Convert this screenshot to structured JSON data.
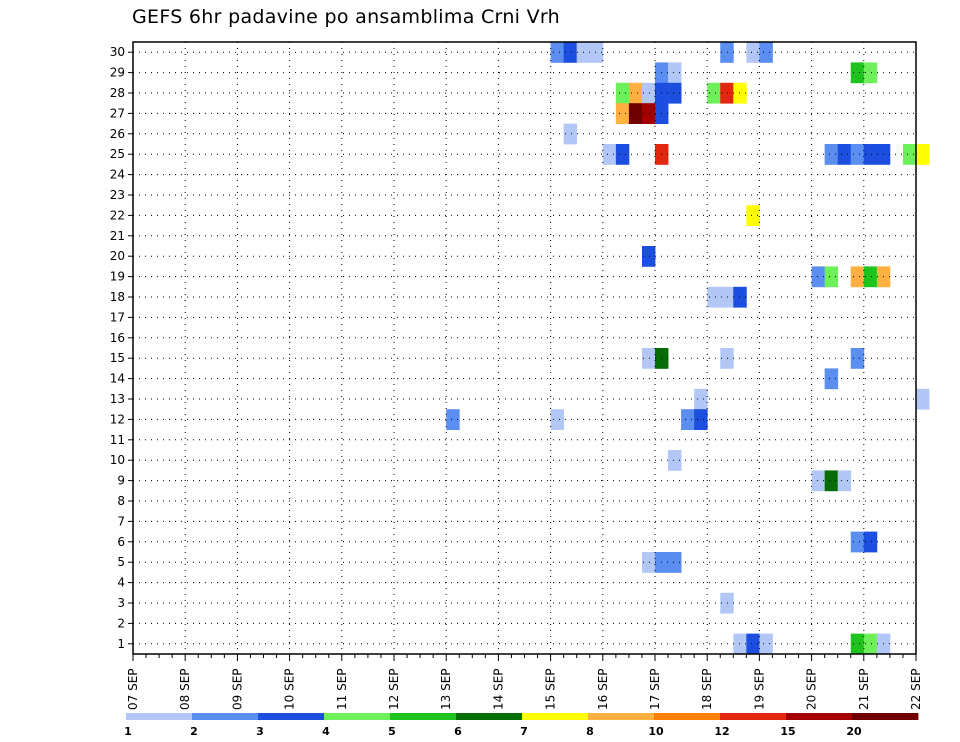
{
  "title": "GEFS 6hr padavine po ansamblima Crni Vrh",
  "chart_data": {
    "type": "heatmap",
    "title": "GEFS 6hr padavine po ansamblima Crni Vrh",
    "x_axis": {
      "ticks": [
        "07 SEP",
        "08 SEP",
        "09 SEP",
        "10 SEP",
        "11 SEP",
        "12 SEP",
        "13 SEP",
        "14 SEP",
        "15 SEP",
        "16 SEP",
        "17 SEP",
        "18 SEP",
        "19 SEP",
        "20 SEP",
        "21 SEP",
        "22 SEP"
      ],
      "step": "6h",
      "range": [
        "07 SEP 00",
        "22 SEP 00"
      ]
    },
    "y_axis": {
      "min": 1,
      "max": 30,
      "ticks": [
        1,
        2,
        3,
        4,
        5,
        6,
        7,
        8,
        9,
        10,
        11,
        12,
        13,
        14,
        15,
        16,
        17,
        18,
        19,
        20,
        21,
        22,
        23,
        24,
        25,
        26,
        27,
        28,
        29,
        30
      ]
    },
    "grid": true,
    "colorbar": {
      "labels": [
        "1",
        "2",
        "3",
        "4",
        "5",
        "6",
        "7",
        "8",
        "10",
        "12",
        "15",
        "20"
      ],
      "colors": [
        "#b3c7f7",
        "#5a8ef0",
        "#1c4fe0",
        "#6df05a",
        "#1ec31e",
        "#066d06",
        "#ffff00",
        "#ffb040",
        "#ff7f00",
        "#e1270d",
        "#a50000",
        "#700000"
      ],
      "placement": "bottom"
    },
    "cells": [
      {
        "member": 30,
        "step": 32,
        "level": 2
      },
      {
        "member": 30,
        "step": 33,
        "level": 3
      },
      {
        "member": 30,
        "step": 34,
        "level": 1
      },
      {
        "member": 30,
        "step": 35,
        "level": 1
      },
      {
        "member": 30,
        "step": 45,
        "level": 2
      },
      {
        "member": 30,
        "step": 47,
        "level": 1
      },
      {
        "member": 30,
        "step": 48,
        "level": 2
      },
      {
        "member": 29,
        "step": 40,
        "level": 2
      },
      {
        "member": 29,
        "step": 41,
        "level": 1
      },
      {
        "member": 29,
        "step": 55,
        "level": 5
      },
      {
        "member": 29,
        "step": 56,
        "level": 4
      },
      {
        "member": 28,
        "step": 37,
        "level": 4
      },
      {
        "member": 28,
        "step": 38,
        "level": 8
      },
      {
        "member": 28,
        "step": 39,
        "level": 1
      },
      {
        "member": 28,
        "step": 40,
        "level": 3
      },
      {
        "member": 28,
        "step": 41,
        "level": 3
      },
      {
        "member": 28,
        "step": 44,
        "level": 4
      },
      {
        "member": 28,
        "step": 45,
        "level": 10
      },
      {
        "member": 28,
        "step": 46,
        "level": 7
      },
      {
        "member": 27,
        "step": 37,
        "level": 8
      },
      {
        "member": 27,
        "step": 38,
        "level": 12
      },
      {
        "member": 27,
        "step": 39,
        "level": 11
      },
      {
        "member": 27,
        "step": 40,
        "level": 3
      },
      {
        "member": 26,
        "step": 33,
        "level": 1
      },
      {
        "member": 25,
        "step": 36,
        "level": 1
      },
      {
        "member": 25,
        "step": 37,
        "level": 3
      },
      {
        "member": 25,
        "step": 40,
        "level": 10
      },
      {
        "member": 25,
        "step": 53,
        "level": 2
      },
      {
        "member": 25,
        "step": 54,
        "level": 3
      },
      {
        "member": 25,
        "step": 55,
        "level": 2
      },
      {
        "member": 25,
        "step": 56,
        "level": 3
      },
      {
        "member": 25,
        "step": 57,
        "level": 3
      },
      {
        "member": 25,
        "step": 59,
        "level": 4
      },
      {
        "member": 25,
        "step": 60,
        "level": 7
      },
      {
        "member": 22,
        "step": 47,
        "level": 7
      },
      {
        "member": 20,
        "step": 39,
        "level": 3
      },
      {
        "member": 19,
        "step": 52,
        "level": 2
      },
      {
        "member": 19,
        "step": 53,
        "level": 4
      },
      {
        "member": 19,
        "step": 55,
        "level": 8
      },
      {
        "member": 19,
        "step": 56,
        "level": 5
      },
      {
        "member": 19,
        "step": 57,
        "level": 8
      },
      {
        "member": 18,
        "step": 44,
        "level": 1
      },
      {
        "member": 18,
        "step": 45,
        "level": 1
      },
      {
        "member": 18,
        "step": 46,
        "level": 3
      },
      {
        "member": 15,
        "step": 39,
        "level": 1
      },
      {
        "member": 15,
        "step": 40,
        "level": 6
      },
      {
        "member": 15,
        "step": 45,
        "level": 1
      },
      {
        "member": 15,
        "step": 55,
        "level": 2
      },
      {
        "member": 14,
        "step": 53,
        "level": 2
      },
      {
        "member": 13,
        "step": 43,
        "level": 1
      },
      {
        "member": 13,
        "step": 60,
        "level": 1
      },
      {
        "member": 12,
        "step": 24,
        "level": 2
      },
      {
        "member": 12,
        "step": 32,
        "level": 1
      },
      {
        "member": 12,
        "step": 42,
        "level": 2
      },
      {
        "member": 12,
        "step": 43,
        "level": 3
      },
      {
        "member": 10,
        "step": 41,
        "level": 1
      },
      {
        "member": 9,
        "step": 52,
        "level": 1
      },
      {
        "member": 9,
        "step": 53,
        "level": 6
      },
      {
        "member": 9,
        "step": 54,
        "level": 1
      },
      {
        "member": 6,
        "step": 55,
        "level": 2
      },
      {
        "member": 6,
        "step": 56,
        "level": 3
      },
      {
        "member": 5,
        "step": 39,
        "level": 1
      },
      {
        "member": 5,
        "step": 40,
        "level": 2
      },
      {
        "member": 5,
        "step": 41,
        "level": 2
      },
      {
        "member": 3,
        "step": 45,
        "level": 1
      },
      {
        "member": 1,
        "step": 46,
        "level": 1
      },
      {
        "member": 1,
        "step": 47,
        "level": 3
      },
      {
        "member": 1,
        "step": 48,
        "level": 1
      },
      {
        "member": 1,
        "step": 55,
        "level": 5
      },
      {
        "member": 1,
        "step": 56,
        "level": 4
      },
      {
        "member": 1,
        "step": 57,
        "level": 1
      }
    ]
  }
}
